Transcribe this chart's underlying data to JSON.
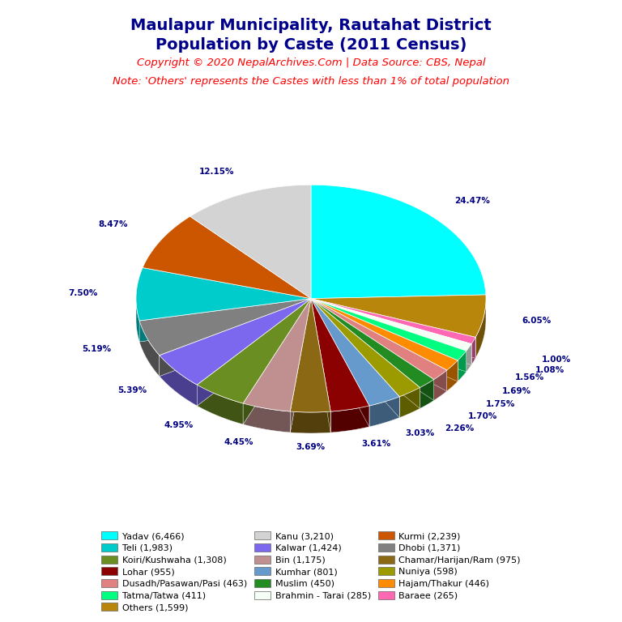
{
  "title_line1": "Maulapur Municipality, Rautahat District",
  "title_line2": "Population by Caste (2011 Census)",
  "title_color": "#00008B",
  "copyright_text": "Copyright © 2020 NepalArchives.Com | Data Source: CBS, Nepal",
  "note_text": "Note: 'Others' represents the Castes with less than 1% of total population",
  "red_color": "#FF0000",
  "label_color": "#000080",
  "slices_ordered": [
    {
      "label": "Yadav (6,466)",
      "value": 6466,
      "pct": "24.47%",
      "color": "#00FFFF"
    },
    {
      "label": "Others (1,599)",
      "value": 1599,
      "pct": "6.05%",
      "color": "#B8860B"
    },
    {
      "label": "Baraee (265)",
      "value": 265,
      "pct": "1.00%",
      "color": "#FF69B4"
    },
    {
      "label": "Brahmin - Tarai (285)",
      "value": 285,
      "pct": "1.08%",
      "color": "#F5FFF5"
    },
    {
      "label": "Tatma/Tatwa (411)",
      "value": 411,
      "pct": "1.56%",
      "color": "#00FF80"
    },
    {
      "label": "Hajam/Thakur (446)",
      "value": 446,
      "pct": "1.69%",
      "color": "#FF8C00"
    },
    {
      "label": "Dusadh/Pasawan/Pasi (463)",
      "value": 463,
      "pct": "1.75%",
      "color": "#E08080"
    },
    {
      "label": "Muslim (450)",
      "value": 450,
      "pct": "1.70%",
      "color": "#228B22"
    },
    {
      "label": "Nuniya (598)",
      "value": 598,
      "pct": "2.26%",
      "color": "#9B9B00"
    },
    {
      "label": "Kumhar (801)",
      "value": 801,
      "pct": "3.03%",
      "color": "#6699CC"
    },
    {
      "label": "Lohar (955)",
      "value": 955,
      "pct": "3.61%",
      "color": "#8B0000"
    },
    {
      "label": "Chamar/Harijan/Ram (975)",
      "value": 975,
      "pct": "3.69%",
      "color": "#8B6914"
    },
    {
      "label": "Bin (1,175)",
      "value": 1175,
      "pct": "4.45%",
      "color": "#C09090"
    },
    {
      "label": "Koiri/Kushwaha (1,308)",
      "value": 1308,
      "pct": "4.95%",
      "color": "#6B8E23"
    },
    {
      "label": "Kalwar (1,424)",
      "value": 1424,
      "pct": "5.39%",
      "color": "#7B68EE"
    },
    {
      "label": "Dhobi (1,371)",
      "value": 1371,
      "pct": "5.19%",
      "color": "#808080"
    },
    {
      "label": "Teli (1,983)",
      "value": 1983,
      "pct": "7.50%",
      "color": "#00CCCC"
    },
    {
      "label": "Kurmi (2,239)",
      "value": 2239,
      "pct": "8.47%",
      "color": "#CC5500"
    },
    {
      "label": "Kanu (3,210)",
      "value": 3210,
      "pct": "12.15%",
      "color": "#D3D3D3"
    }
  ],
  "legend_order": [
    {
      "label": "Yadav (6,466)",
      "color": "#00FFFF"
    },
    {
      "label": "Teli (1,983)",
      "color": "#00CCCC"
    },
    {
      "label": "Koiri/Kushwaha (1,308)",
      "color": "#6B8E23"
    },
    {
      "label": "Lohar (955)",
      "color": "#8B0000"
    },
    {
      "label": "Dusadh/Pasawan/Pasi (463)",
      "color": "#E08080"
    },
    {
      "label": "Tatma/Tatwa (411)",
      "color": "#00FF80"
    },
    {
      "label": "Others (1,599)",
      "color": "#B8860B"
    },
    {
      "label": "Kanu (3,210)",
      "color": "#D3D3D3"
    },
    {
      "label": "Kalwar (1,424)",
      "color": "#7B68EE"
    },
    {
      "label": "Bin (1,175)",
      "color": "#C09090"
    },
    {
      "label": "Kumhar (801)",
      "color": "#6699CC"
    },
    {
      "label": "Muslim (450)",
      "color": "#228B22"
    },
    {
      "label": "Brahmin - Tarai (285)",
      "color": "#F5FFF5"
    },
    {
      "label": "Kurmi (2,239)",
      "color": "#CC5500"
    },
    {
      "label": "Dhobi (1,371)",
      "color": "#808080"
    },
    {
      "label": "Chamar/Harijan/Ram (975)",
      "color": "#8B6914"
    },
    {
      "label": "Nuniya (598)",
      "color": "#9B9B00"
    },
    {
      "label": "Hajam/Thakur (446)",
      "color": "#FF8C00"
    },
    {
      "label": "Baraee (265)",
      "color": "#FF69B4"
    }
  ]
}
